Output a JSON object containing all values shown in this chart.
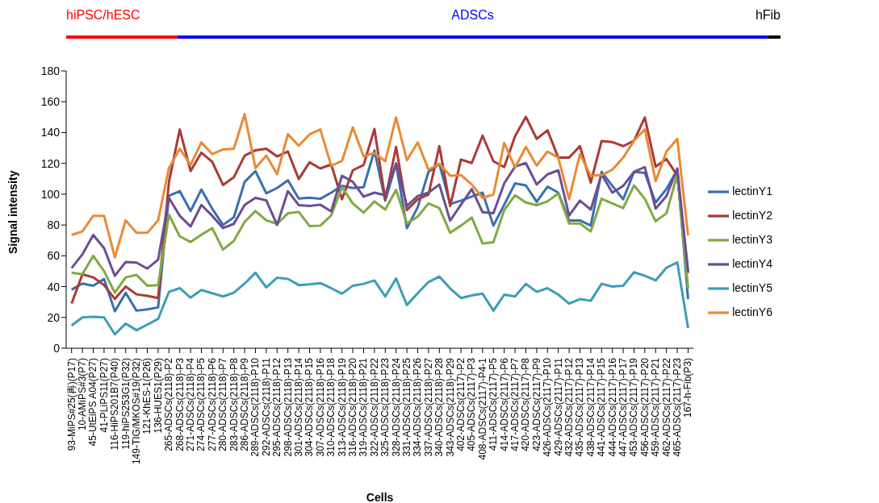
{
  "chart_data": {
    "type": "line",
    "xlabel": "Cells",
    "ylabel": "Signal intensity",
    "categories": [
      "93-MiPS#25(再)(P17)",
      "10-AMiPS#3(P7)",
      "45-UtEiPS A04(P27)",
      "41-PLiPS11(P27)",
      "116-HiPS201B7(P40)",
      "119-hiPS253G1(P32)",
      "149-TIG/MKOS#19(P32)",
      "121-KhES-1(P26)",
      "136-HUES1(P29)",
      "265-ADSCs(2118)-P2",
      "268-ADSCs(2118)-P3",
      "271-ADSCs(2118)-P4",
      "274-ADSCs(2118)-P5",
      "277-ADSCs(2118)-P6",
      "280-ADSCs(2118)-P7",
      "283-ADSCs(2118)-P8",
      "286-ADSCs(2118)-P9",
      "289-ADSCs(2118)-P10",
      "292-ADSCs(2118)-P11",
      "295-ADSCs(2118)-P12",
      "298-ADSCs(2118)-P13",
      "301-ADSCs(2118)-P14",
      "304-ADSCs(2118)-P15",
      "307-ADSCs(2118)-P16",
      "310-ADSCs(2118)-P18",
      "313-ADSCs(2118)-P19",
      "316-ADSCs(2118)-P20",
      "319-ADSCs(2118)-P21",
      "322-ADSCs(2118)-P22",
      "325-ADSCs(2118)-P23",
      "328-ADSCs(2118)-P24",
      "331-ADSCs(2118)-P25",
      "334-ADSCs(2118)-P26",
      "337-ADSCs(2118)-P27",
      "340-ADSCs(2118)-P28",
      "343-ADSCs(2118)-P29",
      "402-ADSCs(2117)-P2",
      "405-ADSCs(2117)-P3",
      "408-ADSCs(2117)-P4-1",
      "411-ADSCs(2117)-P5",
      "414-ADSCs(2117)-P6",
      "417-ADSCs(2117)-P7",
      "420-ADSCs(2117)-P8",
      "423-ADSCs(2117)-P9",
      "426-ADSCs(2117)-P10",
      "429-ADSCs(2117)-P11",
      "432-ADSCs(2117)-P12",
      "435-ADSCs(2117)-P13",
      "438-ADSCs(2117)-P14",
      "441-ADSCs(2117)-P15",
      "444-ADSCs(2117)-P16",
      "447-ADSCs(2117)-P17",
      "453-ADSCs(2117)-P19",
      "456-ADSCs(2117)-P20",
      "459-ADSCs(2117)-P21",
      "462-ADSCs(2117)-P22",
      "465-ADSCs(2117)-P23",
      "167-h-Fib(P3)"
    ],
    "series": [
      {
        "name": "lectinY1",
        "color": "#3a6fb0",
        "values": [
          38,
          42,
          40.6,
          45,
          24,
          36,
          24.4,
          25.3,
          26.5,
          99,
          102,
          89,
          103,
          90.6,
          80,
          85,
          108,
          115,
          100.5,
          104,
          109,
          97.2,
          97.7,
          97,
          101,
          105.4,
          104,
          104.5,
          128.4,
          95.8,
          119.7,
          77.9,
          91.5,
          114.5,
          119.7,
          93.6,
          95.8,
          98.4,
          101,
          79.6,
          93.2,
          107,
          105.7,
          95,
          104.9,
          101,
          83,
          83,
          79.6,
          114.5,
          105.4,
          96.7,
          114.5,
          113.8,
          94.6,
          103.4,
          115.9,
          31.9
        ]
      },
      {
        "name": "lectinY2",
        "color": "#ab3a36",
        "values": [
          29,
          48,
          46,
          41,
          32,
          40,
          35,
          34,
          32.6,
          108,
          142,
          115,
          127,
          121,
          106,
          111,
          125,
          128.5,
          129.5,
          124.5,
          127.7,
          109.8,
          120.7,
          116.7,
          119.3,
          96.7,
          115.5,
          119,
          142.3,
          96.7,
          130.7,
          89.7,
          96.7,
          99.8,
          131.2,
          92.3,
          122.5,
          120.2,
          138,
          121.4,
          117.6,
          137.6,
          150.2,
          135.9,
          141.5,
          123.7,
          123.7,
          131.2,
          107.5,
          134.5,
          133.8,
          131.2,
          134.7,
          149.8,
          117.9,
          122.8,
          112.2,
          48.8
        ]
      },
      {
        "name": "lectinY3",
        "color": "#83a844",
        "values": [
          49,
          48,
          60,
          50,
          36,
          46,
          47.6,
          40.6,
          41,
          86.6,
          72.6,
          69,
          73.7,
          78,
          64,
          69.7,
          82,
          89,
          83,
          80.7,
          87.6,
          88.5,
          79.3,
          79.6,
          86.2,
          104.5,
          94,
          88,
          95.3,
          90,
          102.8,
          81,
          85.4,
          94,
          91,
          75,
          79.6,
          84.8,
          68,
          68.8,
          89.7,
          99.3,
          94.6,
          92.9,
          95.3,
          100.5,
          81,
          81,
          75.8,
          97,
          94,
          91,
          105.7,
          97,
          82.4,
          87.6,
          112.9,
          38.8
        ]
      },
      {
        "name": "lectinY4",
        "color": "#6b4e93",
        "values": [
          52,
          61,
          73.5,
          65,
          47,
          56,
          55.6,
          51.7,
          57.5,
          97.6,
          86,
          79,
          93,
          86,
          78,
          80.7,
          93,
          97.6,
          96,
          80,
          102,
          92.9,
          92.3,
          93.2,
          88.8,
          112,
          108,
          98.4,
          101,
          99.3,
          120,
          92.3,
          98.8,
          101,
          106.3,
          82.8,
          93.2,
          103.3,
          88.3,
          87.6,
          107,
          117.9,
          120.2,
          106.3,
          112.9,
          115.5,
          86.2,
          95.8,
          90,
          112.9,
          101,
          105.4,
          114.5,
          117.6,
          90.6,
          98.8,
          116.7,
          49.7
        ]
      },
      {
        "name": "lectinY5",
        "color": "#3d9db8",
        "values": [
          14.8,
          20,
          20.4,
          20,
          9,
          16,
          11.7,
          15.3,
          19,
          36.6,
          39,
          32.8,
          37.8,
          35.7,
          33.6,
          36,
          42,
          49,
          39.5,
          45.8,
          45,
          41,
          41.5,
          42.3,
          39,
          35.4,
          40.6,
          41.8,
          44,
          33.6,
          45.3,
          28,
          35.7,
          43,
          46.5,
          38.8,
          32.6,
          34.3,
          35.4,
          24.4,
          34.8,
          33.6,
          41.8,
          36.6,
          39,
          34.8,
          29,
          31.9,
          30.8,
          41.8,
          40,
          40.6,
          49.3,
          47,
          44,
          52.3,
          55.7,
          13.1
        ]
      },
      {
        "name": "lectinY6",
        "color": "#e98a35",
        "values": [
          73.5,
          75.8,
          86,
          86,
          59,
          83,
          75,
          75,
          83,
          117,
          129.5,
          119,
          133.6,
          126,
          129,
          129.5,
          152,
          117,
          125,
          113,
          139,
          131.5,
          138.8,
          142,
          118.5,
          121.6,
          143.4,
          124.6,
          126.7,
          121.4,
          149.8,
          122,
          133.6,
          115.9,
          119.7,
          112,
          112.4,
          106.3,
          97.6,
          99.8,
          133.3,
          117.2,
          130.7,
          118.5,
          127.7,
          123.7,
          96.7,
          126,
          112,
          112.4,
          115.9,
          123.7,
          134.7,
          142,
          108.5,
          127.7,
          135.9,
          73.2
        ]
      }
    ],
    "ylim": [
      0,
      180
    ],
    "yticks": [
      0,
      20,
      40,
      60,
      80,
      100,
      120,
      140,
      160,
      180
    ],
    "annotations": [
      "hiPSC/hESC",
      "ADSCs",
      "hFib"
    ],
    "legend": "right",
    "grid": false,
    "marker": "none",
    "line_style": "solid"
  }
}
